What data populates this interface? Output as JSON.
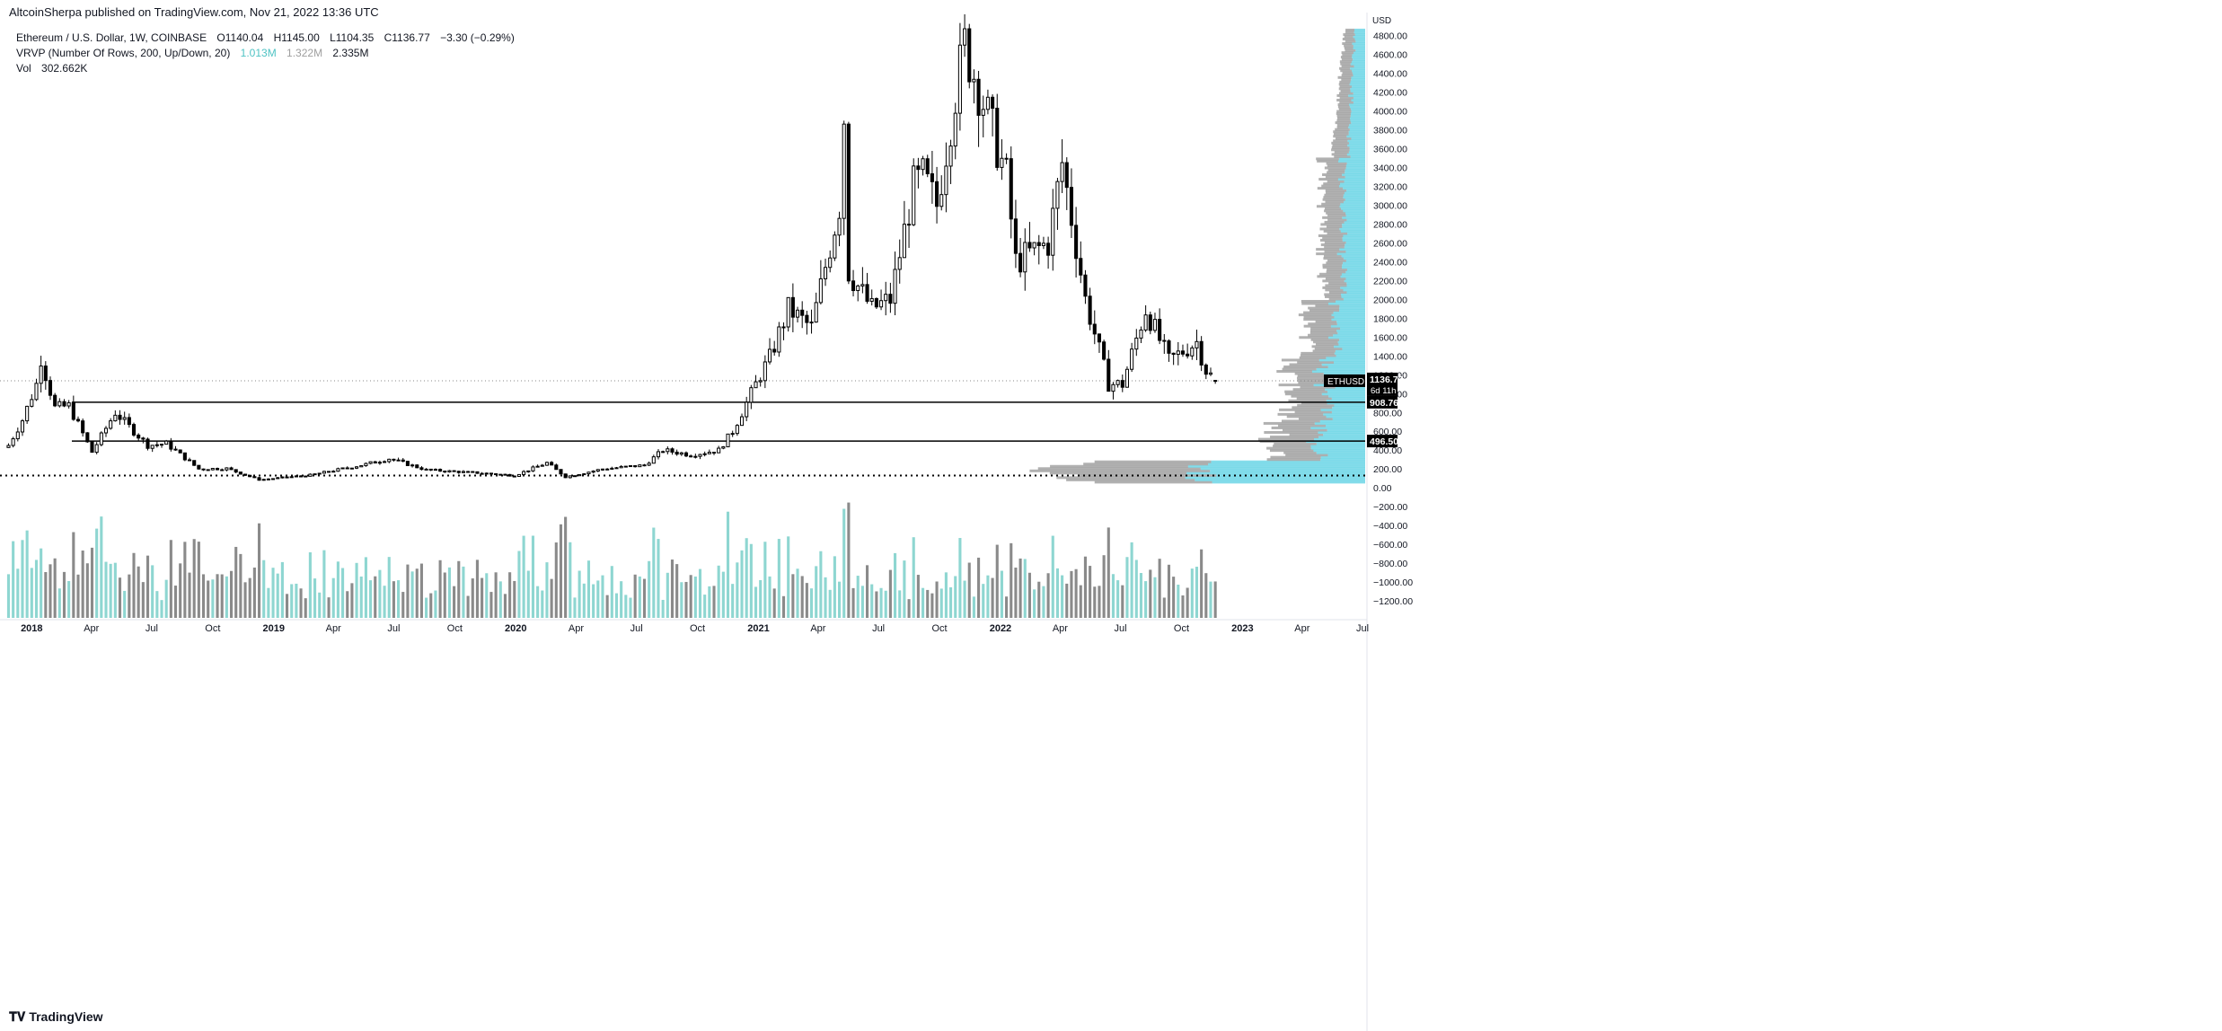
{
  "header": {
    "published": "AltcoinSherpa published on TradingView.com, Nov 21, 2022 13:36 UTC"
  },
  "legend": {
    "symbol": "Ethereum / U.S. Dollar, 1W, COINBASE",
    "open": "O1140.04",
    "high": "H1145.00",
    "low": "L1104.35",
    "close": "C1136.77",
    "change": "−3.30 (−0.29%)",
    "vrvp_label": "VRVP (Number Of Rows, 200, Up/Down, 20)",
    "vrvp_up": "1.013M",
    "vrvp_down": "1.322M",
    "vrvp_total": "2.335M",
    "vol_label": "Vol",
    "vol_value": "302.662K"
  },
  "footer": {
    "brand": "TradingView"
  },
  "colors": {
    "up_volume": "#8ed6d1",
    "down_volume": "#8a8a8a",
    "candle_up": "#ffffff",
    "candle_down": "#000000",
    "vrvp_up": "#6fd6e6",
    "vrvp_down": "#9e9e9e",
    "level_line": "#000000"
  },
  "chart_data": {
    "type": "candlestick",
    "symbol": "ETHUSD",
    "timeframe": "1W",
    "exchange": "COINBASE",
    "y_axis_unit": "USD",
    "y_ticks": [
      "4800.00",
      "4600.00",
      "4400.00",
      "4200.00",
      "4000.00",
      "3800.00",
      "3600.00",
      "3400.00",
      "3200.00",
      "3000.00",
      "2800.00",
      "2600.00",
      "2400.00",
      "2200.00",
      "2000.00",
      "1800.00",
      "1600.00",
      "1400.00",
      "1200.00",
      "1000.00",
      "800.00",
      "600.00",
      "400.00",
      "200.00",
      "0.00",
      "−200.00",
      "−400.00",
      "−600.00",
      "−800.00",
      "−1000.00",
      "−1200.00"
    ],
    "x_ticks": [
      {
        "label": "2018",
        "date": "2018-01-01",
        "bold": true
      },
      {
        "label": "Apr",
        "date": "2018-04-01"
      },
      {
        "label": "Jul",
        "date": "2018-07-01"
      },
      {
        "label": "Oct",
        "date": "2018-10-01"
      },
      {
        "label": "2019",
        "date": "2019-01-01",
        "bold": true
      },
      {
        "label": "Apr",
        "date": "2019-04-01"
      },
      {
        "label": "Jul",
        "date": "2019-07-01"
      },
      {
        "label": "Oct",
        "date": "2019-10-01"
      },
      {
        "label": "2020",
        "date": "2020-01-01",
        "bold": true
      },
      {
        "label": "Apr",
        "date": "2020-04-01"
      },
      {
        "label": "Jul",
        "date": "2020-07-01"
      },
      {
        "label": "Oct",
        "date": "2020-10-01"
      },
      {
        "label": "2021",
        "date": "2021-01-01",
        "bold": true
      },
      {
        "label": "Apr",
        "date": "2021-04-01"
      },
      {
        "label": "Jul",
        "date": "2021-07-01"
      },
      {
        "label": "Oct",
        "date": "2021-10-01"
      },
      {
        "label": "2022",
        "date": "2022-01-01",
        "bold": true
      },
      {
        "label": "Apr",
        "date": "2022-04-01"
      },
      {
        "label": "Jul",
        "date": "2022-07-01"
      },
      {
        "label": "Oct",
        "date": "2022-10-01"
      },
      {
        "label": "2023",
        "date": "2023-01-01",
        "bold": true
      },
      {
        "label": "Apr",
        "date": "2023-04-01"
      },
      {
        "label": "Jul",
        "date": "2023-07-01"
      }
    ],
    "price_range": [
      -1400,
      4950
    ],
    "date_range": [
      "2017-11-25",
      "2023-07-05"
    ],
    "current_price_label": "ETHUSD",
    "current_price": "1136.77",
    "countdown": "6d 11h",
    "horizontal_levels": [
      {
        "value": 908.76,
        "label": "908.76",
        "style": "solid"
      },
      {
        "value": 496.5,
        "label": "496.50",
        "style": "solid"
      },
      {
        "value": 130,
        "label": "",
        "style": "dotted"
      }
    ],
    "keypoints": [
      {
        "date": "2017-11-27",
        "close": 450
      },
      {
        "date": "2017-12-18",
        "close": 720
      },
      {
        "date": "2018-01-08",
        "close": 1100
      },
      {
        "date": "2018-01-15",
        "close": 1380
      },
      {
        "date": "2018-02-05",
        "close": 850
      },
      {
        "date": "2018-02-26",
        "close": 870
      },
      {
        "date": "2018-04-02",
        "close": 380
      },
      {
        "date": "2018-05-07",
        "close": 800
      },
      {
        "date": "2018-06-25",
        "close": 450
      },
      {
        "date": "2018-07-23",
        "close": 470
      },
      {
        "date": "2018-09-10",
        "close": 200
      },
      {
        "date": "2018-10-22",
        "close": 205
      },
      {
        "date": "2018-12-10",
        "close": 85
      },
      {
        "date": "2019-02-25",
        "close": 135
      },
      {
        "date": "2019-05-20",
        "close": 250
      },
      {
        "date": "2019-06-24",
        "close": 310
      },
      {
        "date": "2019-08-19",
        "close": 190
      },
      {
        "date": "2019-11-25",
        "close": 150
      },
      {
        "date": "2019-12-30",
        "close": 130
      },
      {
        "date": "2020-02-17",
        "close": 265
      },
      {
        "date": "2020-03-16",
        "close": 115
      },
      {
        "date": "2020-05-11",
        "close": 200
      },
      {
        "date": "2020-07-13",
        "close": 240
      },
      {
        "date": "2020-08-10",
        "close": 400
      },
      {
        "date": "2020-09-21",
        "close": 350
      },
      {
        "date": "2020-11-02",
        "close": 400
      },
      {
        "date": "2020-11-23",
        "close": 600
      },
      {
        "date": "2021-01-04",
        "close": 1200
      },
      {
        "date": "2021-01-18",
        "close": 1380
      },
      {
        "date": "2021-02-15",
        "close": 1900
      },
      {
        "date": "2021-03-22",
        "close": 1700
      },
      {
        "date": "2021-05-03",
        "close": 3000
      },
      {
        "date": "2021-05-10",
        "close": 3950
      },
      {
        "date": "2021-05-17",
        "close": 2300
      },
      {
        "date": "2021-06-21",
        "close": 1900
      },
      {
        "date": "2021-07-19",
        "close": 2000
      },
      {
        "date": "2021-08-23",
        "close": 3200
      },
      {
        "date": "2021-09-06",
        "close": 3300
      },
      {
        "date": "2021-09-27",
        "close": 3000
      },
      {
        "date": "2021-10-25",
        "close": 4200
      },
      {
        "date": "2021-11-08",
        "close": 4700
      },
      {
        "date": "2021-12-06",
        "close": 4100
      },
      {
        "date": "2022-01-10",
        "close": 3300
      },
      {
        "date": "2022-01-24",
        "close": 2400
      },
      {
        "date": "2022-03-14",
        "close": 2600
      },
      {
        "date": "2022-04-04",
        "close": 3450
      },
      {
        "date": "2022-05-09",
        "close": 2000
      },
      {
        "date": "2022-06-13",
        "close": 1100
      },
      {
        "date": "2022-07-04",
        "close": 1100
      },
      {
        "date": "2022-08-08",
        "close": 1900
      },
      {
        "date": "2022-09-12",
        "close": 1350
      },
      {
        "date": "2022-10-24",
        "close": 1550
      },
      {
        "date": "2022-11-07",
        "close": 1250
      },
      {
        "date": "2022-11-21",
        "close": 1136.77
      }
    ],
    "volume_panel": "bars colored by candle direction beneath price series",
    "vrvp_profile": "horizontal volume-by-price histogram anchored to right edge, up (cyan) and down (gray) portions"
  }
}
